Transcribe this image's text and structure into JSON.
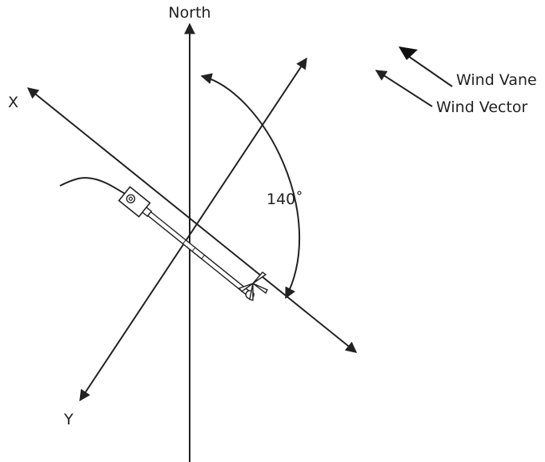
{
  "labels": {
    "north": "North",
    "x_axis": "X",
    "y_axis": "Y",
    "angle": "140˚",
    "wind_vane": "Wind Vane",
    "wind_vector": "Wind Vector"
  }
}
